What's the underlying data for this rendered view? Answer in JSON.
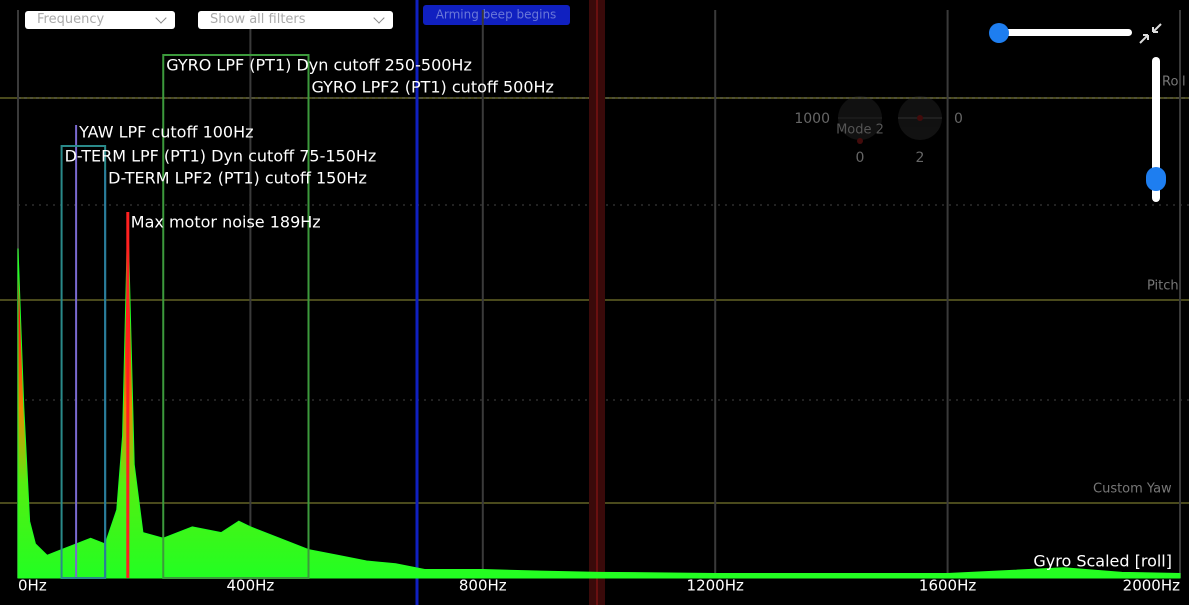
{
  "controls": {
    "view_select": "Frequency",
    "filter_select": "Show all filters"
  },
  "event_marker": "Arming beep begins",
  "axis_labels": {
    "roll": "Roll",
    "pitch": "Pitch",
    "yaw": "Custom Yaw"
  },
  "stick_overlay": {
    "mode": "Mode 2",
    "left_value": "1000",
    "right_value": "0",
    "left_bottom": "0",
    "right_bottom": "2"
  },
  "chart_data": {
    "type": "area",
    "x": [
      0,
      10,
      20,
      30,
      50,
      75,
      100,
      125,
      150,
      170,
      180,
      189,
      200,
      215,
      250,
      300,
      350,
      380,
      400,
      450,
      500,
      550,
      600,
      650,
      700,
      800,
      900,
      1000,
      1200,
      1400,
      1600,
      1800,
      1900,
      2000
    ],
    "series": [
      {
        "name": "Gyro Scaled [roll]",
        "color": "#22ff22",
        "values": [
          58,
          30,
          10,
          6,
          4,
          5,
          6,
          7,
          6,
          12,
          25,
          64,
          20,
          8,
          7,
          9,
          8,
          10,
          9,
          7,
          5,
          4,
          3,
          2.5,
          1.5,
          1.5,
          1.2,
          1,
          0.8,
          0.8,
          0.8,
          1.8,
          1,
          0.8
        ]
      }
    ],
    "xlim": [
      0,
      2000
    ],
    "ylim": [
      0,
      100
    ],
    "xticks": [
      {
        "value": 0,
        "label": "0Hz"
      },
      {
        "value": 400,
        "label": "400Hz"
      },
      {
        "value": 800,
        "label": "800Hz"
      },
      {
        "value": 1200,
        "label": "1200Hz"
      },
      {
        "value": 1600,
        "label": "1600Hz"
      },
      {
        "value": 2000,
        "label": "2000Hz"
      }
    ],
    "grid": true,
    "annotations": [
      {
        "label": "GYRO LPF (PT1) Dyn cutoff 250-500Hz",
        "hz": [
          250,
          500
        ],
        "color": "#3c9a3c"
      },
      {
        "label": "GYRO LPF2 (PT1) cutoff 500Hz",
        "hz": [
          500
        ],
        "color": "#3c9a3c"
      },
      {
        "label": "YAW LPF cutoff 100Hz",
        "hz": [
          100
        ],
        "color": "#7a6ad0"
      },
      {
        "label": "D-TERM LPF (PT1) Dyn cutoff 75-150Hz",
        "hz": [
          75,
          150
        ],
        "color": "#2a8a8a"
      },
      {
        "label": "D-TERM LPF2 (PT1) cutoff 150Hz",
        "hz": [
          150
        ],
        "color": "#2a7c9c"
      },
      {
        "label": "Max motor noise 189Hz",
        "hz": [
          189
        ],
        "color": "#ff2020"
      }
    ]
  }
}
